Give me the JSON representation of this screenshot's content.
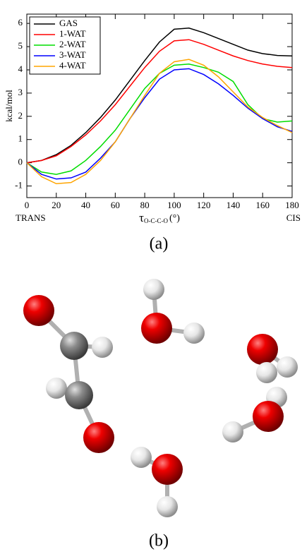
{
  "chart_data": {
    "type": "line",
    "ylabel": "kcal/mol",
    "xlabel": {
      "symbol": "τ",
      "subscript": "O-C-C-O",
      "unit": "(°)"
    },
    "x_end_labels": [
      "TRANS",
      "CIS"
    ],
    "x": [
      0,
      10,
      20,
      30,
      40,
      50,
      60,
      70,
      80,
      90,
      100,
      110,
      120,
      130,
      140,
      150,
      160,
      170,
      180
    ],
    "xlim": [
      0,
      180
    ],
    "xticks": [
      0,
      20,
      40,
      60,
      80,
      100,
      120,
      140,
      160,
      180
    ],
    "ylim": [
      -1.5,
      6.4
    ],
    "yticks": [
      -1,
      0,
      1,
      2,
      3,
      4,
      5,
      6
    ],
    "legend": "top-left",
    "series": [
      {
        "name": "GAS",
        "color": "#000000",
        "values": [
          0,
          0.1,
          0.35,
          0.75,
          1.3,
          1.95,
          2.7,
          3.55,
          4.4,
          5.2,
          5.75,
          5.8,
          5.6,
          5.35,
          5.1,
          4.85,
          4.7,
          4.62,
          4.6
        ]
      },
      {
        "name": "1-WAT",
        "color": "#ff0000",
        "values": [
          0,
          0.1,
          0.3,
          0.7,
          1.2,
          1.8,
          2.5,
          3.3,
          4.1,
          4.8,
          5.25,
          5.3,
          5.1,
          4.85,
          4.6,
          4.4,
          4.25,
          4.15,
          4.1
        ]
      },
      {
        "name": "2-WAT",
        "color": "#00dd00",
        "values": [
          0,
          -0.4,
          -0.5,
          -0.35,
          0.1,
          0.7,
          1.4,
          2.3,
          3.2,
          3.85,
          4.2,
          4.25,
          4.1,
          3.9,
          3.5,
          2.5,
          1.9,
          1.75,
          1.8
        ]
      },
      {
        "name": "3-WAT",
        "color": "#0000ff",
        "values": [
          0,
          -0.5,
          -0.7,
          -0.65,
          -0.4,
          0.2,
          0.9,
          1.9,
          2.8,
          3.6,
          4.0,
          4.05,
          3.8,
          3.4,
          2.9,
          2.35,
          1.9,
          1.55,
          1.35
        ]
      },
      {
        "name": "4-WAT",
        "color": "#ffa500",
        "values": [
          0,
          -0.6,
          -0.9,
          -0.85,
          -0.5,
          0.1,
          0.9,
          1.9,
          2.9,
          3.85,
          4.35,
          4.45,
          4.2,
          3.7,
          3.05,
          2.4,
          1.95,
          1.6,
          1.3
        ]
      }
    ]
  },
  "captions": [
    "(a)",
    "(b)"
  ]
}
